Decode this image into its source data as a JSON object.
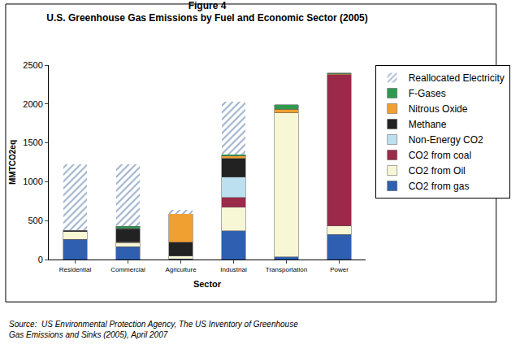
{
  "chart_data": {
    "type": "bar",
    "title": "Figure 4",
    "subtitle": "U.S. Greenhouse Gas Emissions by Fuel and Economic Sector (2005)",
    "x_label": "Sector",
    "y_label": "MMTCO2eq",
    "source": [
      "Source:  US Environmental Protection Agency, The US Inventory of Greenhouse",
      "Gas Emissions and Sinks (2005), April 2007"
    ],
    "categories": [
      "Residential",
      "Commercial",
      "Agriculture",
      "Industrial",
      "Transportation",
      "Power"
    ],
    "stacked": true,
    "grid": false,
    "legend": "right",
    "ylim": [
      0,
      2500
    ],
    "yticks": [
      0,
      500,
      1000,
      1500,
      2000,
      2500
    ],
    "series": [
      {
        "name": "CO2 from gas",
        "color": "#2f5fb0",
        "values": [
          260,
          165,
          10,
          370,
          35,
          320
        ]
      },
      {
        "name": "CO2 from Oil",
        "color": "#f7f7d6",
        "values": [
          100,
          50,
          35,
          300,
          1850,
          110
        ]
      },
      {
        "name": "CO2 from coal",
        "color": "#9b2a4a",
        "values": [
          0,
          10,
          0,
          130,
          0,
          1945
        ]
      },
      {
        "name": "Non-Energy CO2",
        "color": "#bde0f0",
        "values": [
          0,
          0,
          0,
          260,
          0,
          0
        ]
      },
      {
        "name": "Methane",
        "color": "#222222",
        "values": [
          15,
          170,
          175,
          240,
          0,
          0
        ]
      },
      {
        "name": "Nitrous Oxide",
        "color": "#f0a030",
        "values": [
          5,
          5,
          370,
          30,
          50,
          15
        ]
      },
      {
        "name": "F-Gases",
        "color": "#2e9a50",
        "values": [
          0,
          25,
          0,
          20,
          55,
          10
        ]
      },
      {
        "name": "Reallocated Electricity",
        "color": "#9fb3cc",
        "marker": "hatched",
        "values": [
          840,
          795,
          50,
          680,
          0,
          0
        ]
      }
    ]
  }
}
